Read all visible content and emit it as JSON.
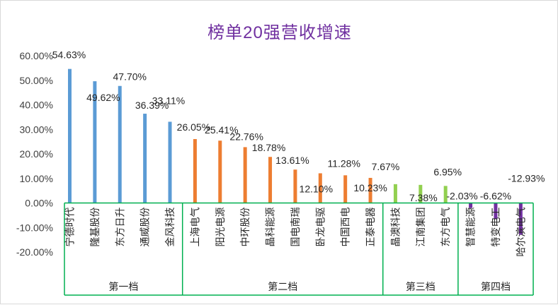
{
  "chart_data": {
    "type": "bar",
    "title": "榜单20强营收增速",
    "ylim": [
      -20,
      60
    ],
    "y_ticks": [
      "60.00%",
      "50.00%",
      "40.00%",
      "30.00%",
      "20.00%",
      "10.00%",
      "0.00%",
      "-10.00%",
      "-20.00%"
    ],
    "y_tick_values": [
      60,
      50,
      40,
      30,
      20,
      10,
      0,
      -10,
      -20
    ],
    "grid": false,
    "legend": "none",
    "categories": [
      "宁德时代",
      "隆基股份",
      "东方日升",
      "通威股份",
      "金风科技",
      "上海电气",
      "阳光电源",
      "中环股份",
      "晶科能源",
      "国电南瑞",
      "卧龙电驱",
      "中国西电",
      "正泰电器",
      "晶澳科技",
      "江南集团",
      "东方电气",
      "智慧能源",
      "特变电工",
      "哈尔滨电气"
    ],
    "values": [
      54.63,
      49.62,
      47.7,
      36.39,
      33.11,
      26.05,
      25.41,
      22.76,
      18.78,
      13.61,
      12.1,
      11.28,
      10.23,
      7.67,
      7.38,
      6.95,
      -2.03,
      -6.62,
      -12.93
    ],
    "data_labels": [
      "54.63%",
      "49.62%",
      "47.70%",
      "36.39%",
      "33.11%",
      "26.05%",
      "25.41%",
      "22.76%",
      "18.78%",
      "13.61%",
      "12.10%",
      "11.28%",
      "10.23%",
      "7.67%",
      "7.38%",
      "6.95%",
      "-2.03%",
      "-6.62%",
      "-12.93%"
    ],
    "groups": [
      {
        "name": "第一档",
        "start": 0,
        "end": 4,
        "color": "#5b9bd5"
      },
      {
        "name": "第二档",
        "start": 5,
        "end": 12,
        "color": "#ed7d31"
      },
      {
        "name": "第三档",
        "start": 13,
        "end": 15,
        "color": "#92d050"
      },
      {
        "name": "第四档",
        "start": 16,
        "end": 18,
        "color": "#7030a0"
      }
    ],
    "box_color": "#00b050"
  }
}
